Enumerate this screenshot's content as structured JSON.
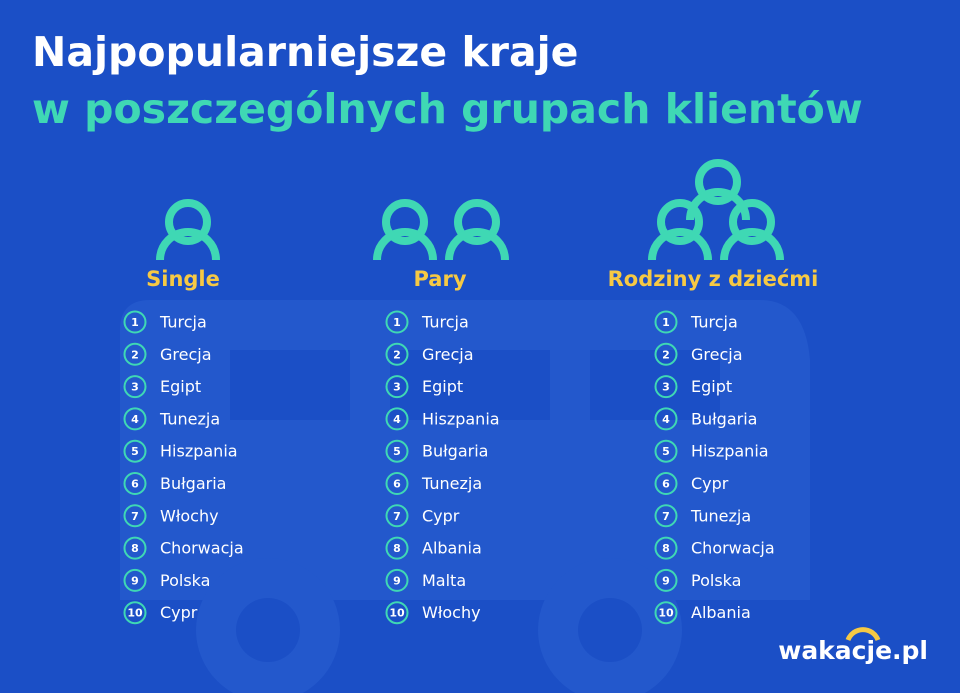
{
  "header": {
    "title_line1": "Najpopularniejsze kraje",
    "title_line2": "w poszczególnych grupach klientów"
  },
  "groups": [
    {
      "name": "Single",
      "items": [
        {
          "rank": 1,
          "country": "Turcja"
        },
        {
          "rank": 2,
          "country": "Grecja"
        },
        {
          "rank": 3,
          "country": "Egipt"
        },
        {
          "rank": 4,
          "country": "Tunezja"
        },
        {
          "rank": 5,
          "country": "Hiszpania"
        },
        {
          "rank": 6,
          "country": "Bułgaria"
        },
        {
          "rank": 7,
          "country": "Włochy"
        },
        {
          "rank": 8,
          "country": "Chorwacja"
        },
        {
          "rank": 9,
          "country": "Polska"
        },
        {
          "rank": 10,
          "country": "Cypr"
        }
      ]
    },
    {
      "name": "Pary",
      "items": [
        {
          "rank": 1,
          "country": "Turcja"
        },
        {
          "rank": 2,
          "country": "Grecja"
        },
        {
          "rank": 3,
          "country": "Egipt"
        },
        {
          "rank": 4,
          "country": "Hiszpania"
        },
        {
          "rank": 5,
          "country": "Bułgaria"
        },
        {
          "rank": 6,
          "country": "Tunezja"
        },
        {
          "rank": 7,
          "country": "Cypr"
        },
        {
          "rank": 8,
          "country": "Albania"
        },
        {
          "rank": 9,
          "country": "Malta"
        },
        {
          "rank": 10,
          "country": "Włochy"
        }
      ]
    },
    {
      "name": "Rodziny z dziećmi",
      "items": [
        {
          "rank": 1,
          "country": "Turcja"
        },
        {
          "rank": 2,
          "country": "Grecja"
        },
        {
          "rank": 3,
          "country": "Egipt"
        },
        {
          "rank": 4,
          "country": "Bułgaria"
        },
        {
          "rank": 5,
          "country": "Hiszpania"
        },
        {
          "rank": 6,
          "country": "Cypr"
        },
        {
          "rank": 7,
          "country": "Tunezja"
        },
        {
          "rank": 8,
          "country": "Chorwacja"
        },
        {
          "rank": 9,
          "country": "Polska"
        },
        {
          "rank": 10,
          "country": "Albania"
        }
      ]
    }
  ],
  "logo": "wakacje.pl"
}
